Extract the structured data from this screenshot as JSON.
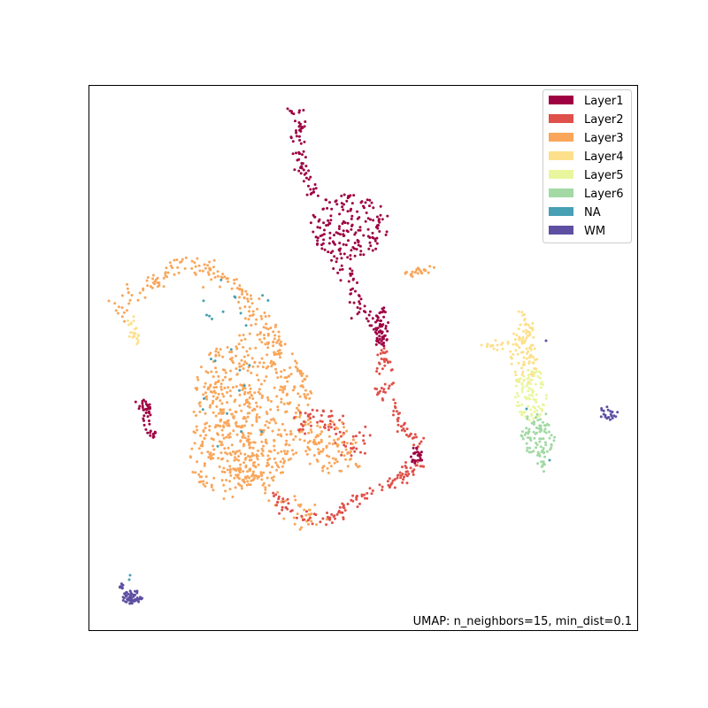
{
  "chart_data": {
    "type": "scatter",
    "title": "",
    "xlabel": "",
    "ylabel": "",
    "axis_ticks": "hidden",
    "grid": false,
    "legend_placement": "top-right",
    "annotation": "UMAP: n_neighbors=15, min_dist=0.1",
    "categories": [
      {
        "name": "Layer1",
        "color": "#9e0142"
      },
      {
        "name": "Layer2",
        "color": "#e0504a"
      },
      {
        "name": "Layer3",
        "color": "#f9a65a"
      },
      {
        "name": "Layer4",
        "color": "#fde08b"
      },
      {
        "name": "Layer5",
        "color": "#e9f69d"
      },
      {
        "name": "Layer6",
        "color": "#a2d9a4"
      },
      {
        "name": "NA",
        "color": "#47a0b3"
      },
      {
        "name": "WM",
        "color": "#5e4fa2"
      }
    ]
  }
}
